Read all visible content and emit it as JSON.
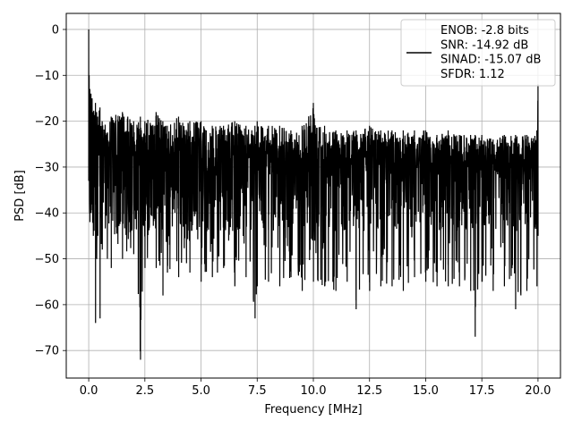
{
  "chart_data": {
    "type": "line",
    "title": "",
    "xlabel": "Frequency [MHz]",
    "ylabel": "PSD [dB]",
    "xlim": [
      -1.0,
      21.0
    ],
    "ylim": [
      -76.0,
      3.5
    ],
    "xticks": [
      0.0,
      2.5,
      5.0,
      7.5,
      10.0,
      12.5,
      15.0,
      17.5,
      20.0
    ],
    "xtick_labels": [
      "0.0",
      "2.5",
      "5.0",
      "7.5",
      "10.0",
      "12.5",
      "15.0",
      "17.5",
      "20.0"
    ],
    "yticks": [
      0,
      -10,
      -20,
      -30,
      -40,
      -50,
      -60,
      -70
    ],
    "ytick_labels": [
      "0",
      "−10",
      "−20",
      "−30",
      "−40",
      "−50",
      "−60",
      "−70"
    ],
    "grid": true,
    "legend_position": "top-right",
    "legend_entries": [
      "ENOB: -2.8 bits",
      "SNR: -14.92 dB",
      "SINAD: -15.07 dB",
      "SFDR: 1.12"
    ],
    "line_color": "#000000",
    "series": [
      {
        "x": [
          0.0,
          0.02,
          0.05,
          0.1,
          0.15,
          0.2,
          0.3,
          0.35,
          0.4,
          0.5,
          0.6,
          1.0,
          1.5,
          2.0,
          2.3,
          2.5,
          3.0,
          3.3,
          3.5,
          4.0,
          4.5,
          5.0,
          5.5,
          6.0,
          6.5,
          7.0,
          7.4,
          7.5,
          8.0,
          8.5,
          9.0,
          9.5,
          10.0,
          10.5,
          11.0,
          11.5,
          11.9,
          12.5,
          13.0,
          13.5,
          14.0,
          14.5,
          15.0,
          15.5,
          16.0,
          16.5,
          17.0,
          17.2,
          17.5,
          18.0,
          18.5,
          19.0,
          19.5,
          19.95,
          20.0
        ],
        "upper": [
          0.0,
          -10,
          -13,
          -14,
          -15,
          -18,
          -16,
          -18,
          -19,
          -17,
          -20,
          -19,
          -18,
          -20,
          -19,
          -20,
          -18,
          -20,
          -21,
          -19,
          -20,
          -20,
          -21,
          -21,
          -20,
          -21,
          -21,
          -20,
          -21,
          -21,
          -22,
          -21,
          -16,
          -21,
          -22,
          -22,
          -22,
          -21,
          -22,
          -22,
          -22,
          -22,
          -22,
          -23,
          -22,
          -23,
          -23,
          -23,
          -23,
          -24,
          -23,
          -23,
          -23,
          -22,
          -12
        ],
        "lower": [
          -33,
          -32,
          -42,
          -40,
          -38,
          -45,
          -64,
          -50,
          -45,
          -63,
          -48,
          -52,
          -50,
          -49,
          -72,
          -52,
          -52,
          -58,
          -53,
          -54,
          -53,
          -55,
          -54,
          -52,
          -56,
          -54,
          -63,
          -56,
          -55,
          -56,
          -54,
          -57,
          -55,
          -56,
          -57,
          -55,
          -61,
          -57,
          -56,
          -56,
          -57,
          -54,
          -55,
          -56,
          -56,
          -56,
          -57,
          -67,
          -55,
          -57,
          -56,
          -61,
          -57,
          -56,
          -45
        ],
        "band_upper": -22,
        "band_lower": -42
      }
    ]
  }
}
